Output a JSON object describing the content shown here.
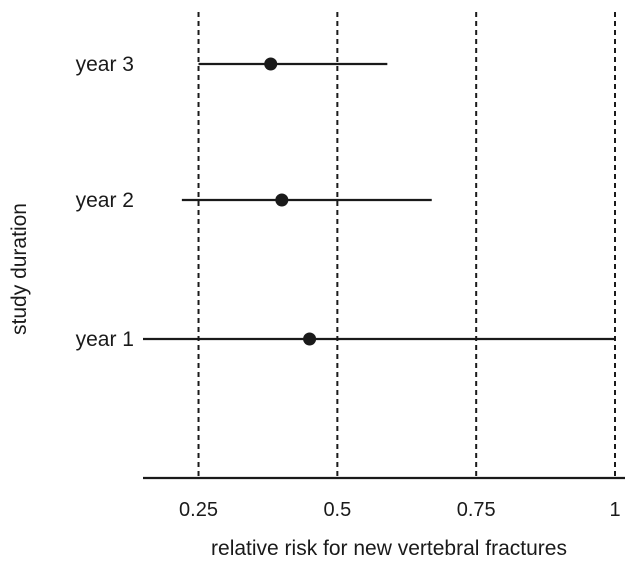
{
  "chart_data": {
    "type": "scatter",
    "subtype": "forest-plot",
    "xlabel": "relative risk for new vertebral fractures",
    "ylabel": "study duration",
    "xlim": [
      0.15,
      1.0
    ],
    "x_ticks": [
      0.25,
      0.5,
      0.75,
      1.0
    ],
    "x_tick_labels": [
      "0.25",
      "0.5",
      "0.75",
      "1"
    ],
    "grid": "vertical dashed lines at tick values",
    "categories": [
      "year 3",
      "year 2",
      "year 1"
    ],
    "points": [
      {
        "label": "year 3",
        "estimate": 0.38,
        "lower": 0.25,
        "upper": 0.59
      },
      {
        "label": "year 2",
        "estimate": 0.4,
        "lower": 0.22,
        "upper": 0.67
      },
      {
        "label": "year 1",
        "estimate": 0.45,
        "lower": 0.15,
        "upper": 1.0
      }
    ],
    "colors": {
      "ink": "#1a1a1a"
    }
  }
}
